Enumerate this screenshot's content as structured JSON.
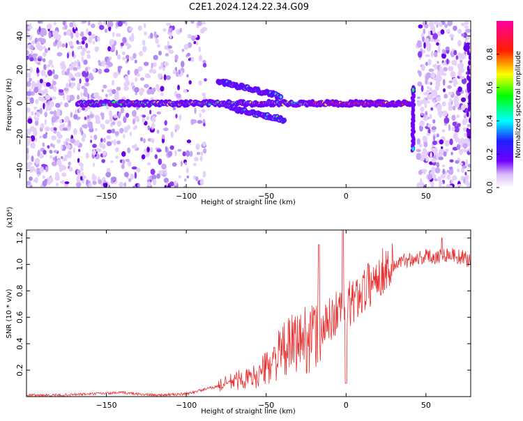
{
  "title": "C2E1.2024.124.22.34.G09",
  "chart_data": [
    {
      "type": "heatmap",
      "xlabel": "Height of straight line (km)",
      "ylabel": "Frequency (Hz)",
      "xlim": [
        -200,
        78
      ],
      "ylim": [
        -50,
        49
      ],
      "xticks": [
        -150,
        -100,
        -50,
        0,
        50
      ],
      "yticks": [
        -40,
        -20,
        0,
        20,
        40
      ],
      "colorbar": {
        "label": "Normalized spectral amplitude",
        "range": [
          0,
          1
        ],
        "ticks": [
          0.0,
          0.2,
          0.4,
          0.6,
          0.8
        ]
      },
      "features": [
        {
          "x_start": -168,
          "x_end": 40,
          "frequency": 0,
          "note": "main line"
        },
        {
          "x_start": -80,
          "x_end": -40,
          "frequency_start": 13,
          "frequency_end": 4
        },
        {
          "x_start": -75,
          "x_end": -38,
          "frequency_start": -2,
          "frequency_end": -10
        },
        {
          "x": 42,
          "frequency_start": 10,
          "frequency_end": -28
        }
      ]
    },
    {
      "type": "line",
      "xlabel": "Height of straight line (km)",
      "ylabel": "SNR (10 * v/v)",
      "y_multiplier": "(x10⁴)",
      "xlim": [
        -200,
        78
      ],
      "ylim": [
        0,
        1.26
      ],
      "xticks": [
        -150,
        -100,
        -50,
        0,
        50
      ],
      "yticks": [
        0.2,
        0.4,
        0.6,
        0.8,
        1.0,
        1.2
      ],
      "color": "#e83030",
      "series": [
        {
          "x": [
            -200,
            -180,
            -160,
            -140,
            -120,
            -100,
            -90,
            -80,
            -70,
            -60,
            -55,
            -50,
            -45,
            -40,
            -35,
            -30,
            -25,
            -20,
            -15,
            -10,
            -5,
            0,
            5,
            10,
            15,
            20,
            25,
            30,
            35,
            40,
            45,
            50,
            55,
            60,
            65,
            70,
            75,
            78
          ],
          "y": [
            0.01,
            0.01,
            0.02,
            0.03,
            0.01,
            0.02,
            0.05,
            0.08,
            0.12,
            0.14,
            0.16,
            0.22,
            0.28,
            0.34,
            0.38,
            0.42,
            0.44,
            0.46,
            0.5,
            0.58,
            0.65,
            0.68,
            0.72,
            0.8,
            0.85,
            0.92,
            0.97,
            1.0,
            1.02,
            1.04,
            1.05,
            1.06,
            1.06,
            1.07,
            1.08,
            1.06,
            1.04,
            1.03
          ]
        }
      ],
      "spikes": [
        {
          "x": -17,
          "y": 1.15
        },
        {
          "x": -2,
          "y": 1.26
        },
        {
          "x": 60,
          "y": 1.2
        }
      ]
    }
  ]
}
